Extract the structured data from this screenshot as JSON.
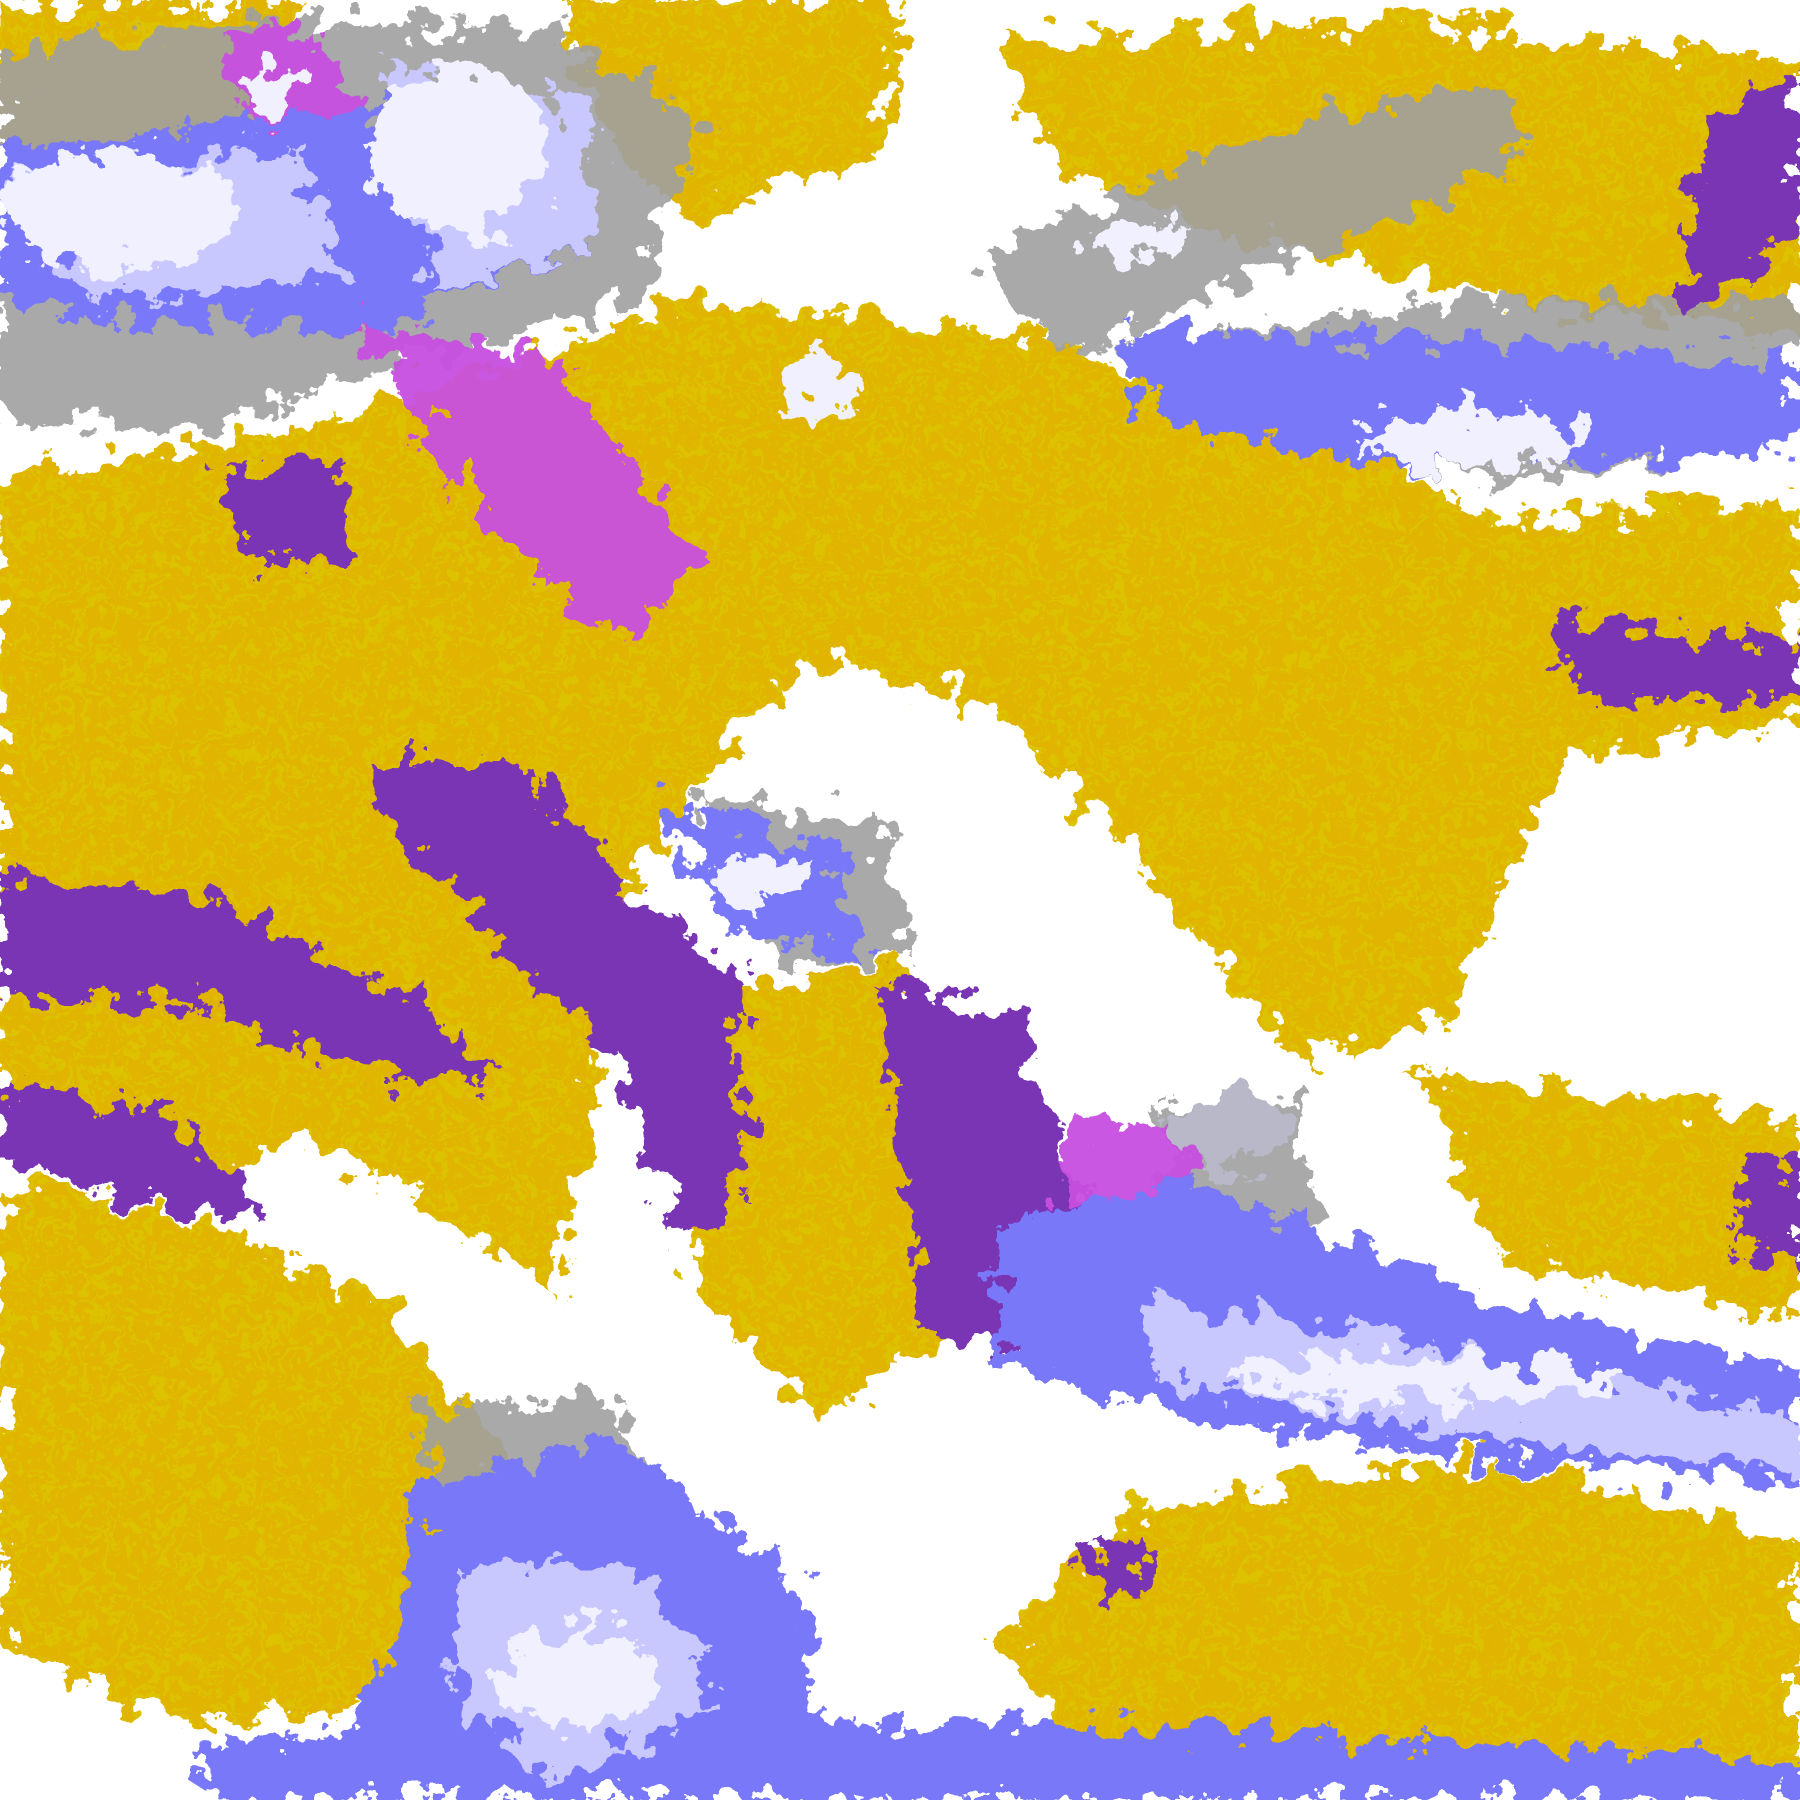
{
  "image": {
    "kind": "satellite cloud-type classification composite",
    "colors": {
      "background": "#ffffff",
      "low_cloud": "#e0b400",
      "low_cloud_dark": "#b88a00",
      "mid_cloud": "#7a35b5",
      "thick_cloud": "#c850e0",
      "high_cloud": "#7878f8",
      "cirrus": "#c8c8ff",
      "deep_convection": "#f0f0ff",
      "grey_cloud": "#a0a0a0"
    }
  }
}
